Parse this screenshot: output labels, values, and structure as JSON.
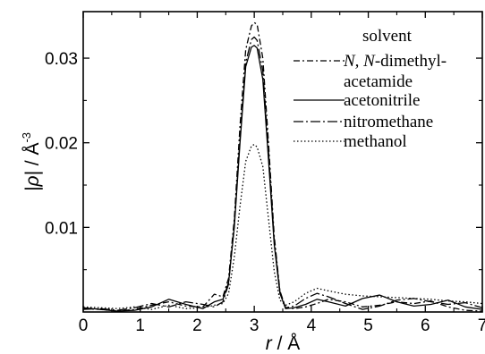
{
  "chart_data": {
    "type": "line",
    "xlabel_var": "r",
    "xlabel_unit": " / Å",
    "ylabel_var": "|ρ|",
    "ylabel_unit": " / Å",
    "ylabel_exp": "-3",
    "xlim": [
      0,
      7
    ],
    "ylim": [
      0,
      0.0355
    ],
    "xticks": [
      0,
      1,
      2,
      3,
      4,
      5,
      6,
      7
    ],
    "xtick_labels": [
      "0",
      "1",
      "2",
      "3",
      "4",
      "5",
      "6",
      "7"
    ],
    "yticks": [
      0.01,
      0.02,
      0.03
    ],
    "ytick_labels": [
      "0.01",
      "0.02",
      "0.03"
    ],
    "grid": false,
    "legend": {
      "title": "solvent",
      "placement": "top-right",
      "entries": [
        {
          "line1_italic": "N, N",
          "line1_rest": "-dimethyl-",
          "line2": "acetamide"
        },
        {
          "line1_italic": "",
          "line1_rest": "acetonitrile",
          "line2": ""
        },
        {
          "line1_italic": "",
          "line1_rest": "nitromethane",
          "line2": ""
        },
        {
          "line1_italic": "",
          "line1_rest": "methanol",
          "line2": ""
        }
      ]
    },
    "series": [
      {
        "style": "dash-dot",
        "peak": 0.0342,
        "x": [
          0,
          0.3,
          0.6,
          0.9,
          1.2,
          1.5,
          1.8,
          2.1,
          2.3,
          2.45,
          2.55,
          2.65,
          2.75,
          2.85,
          2.95,
          3.0,
          3.05,
          3.15,
          3.25,
          3.35,
          3.45,
          3.55,
          3.7,
          3.9,
          4.1,
          4.3,
          4.6,
          4.9,
          5.2,
          5.5,
          5.8,
          6.1,
          6.4,
          6.7,
          7.0
        ],
        "y": [
          0.0004,
          0.0003,
          0.0001,
          0.0003,
          0.0008,
          0.0012,
          0.0007,
          0.0006,
          0.0021,
          0.0018,
          0.004,
          0.011,
          0.022,
          0.031,
          0.0338,
          0.0342,
          0.034,
          0.03,
          0.02,
          0.009,
          0.0025,
          0.0005,
          0.0004,
          0.0006,
          0.001,
          0.0015,
          0.0012,
          0.0006,
          0.0008,
          0.0012,
          0.001,
          0.0013,
          0.0006,
          0.0002,
          0.0001
        ]
      },
      {
        "style": "solid",
        "peak": 0.0315,
        "x": [
          0,
          0.3,
          0.6,
          0.9,
          1.2,
          1.5,
          1.8,
          2.1,
          2.3,
          2.45,
          2.55,
          2.65,
          2.75,
          2.85,
          2.95,
          3.0,
          3.05,
          3.15,
          3.25,
          3.35,
          3.45,
          3.55,
          3.7,
          3.9,
          4.1,
          4.3,
          4.6,
          4.9,
          5.2,
          5.5,
          5.8,
          6.1,
          6.4,
          6.7,
          7.0
        ],
        "y": [
          0.0005,
          0.0003,
          0.0001,
          0.0002,
          0.0006,
          0.0015,
          0.0009,
          0.0004,
          0.0012,
          0.0015,
          0.0035,
          0.01,
          0.02,
          0.029,
          0.0313,
          0.0315,
          0.0312,
          0.0275,
          0.018,
          0.008,
          0.0022,
          0.0004,
          0.0005,
          0.0009,
          0.0015,
          0.0012,
          0.0007,
          0.0016,
          0.002,
          0.0012,
          0.0007,
          0.0009,
          0.0014,
          0.0006,
          0.0003
        ]
      },
      {
        "style": "long-dash-dot",
        "peak": 0.0325,
        "x": [
          0,
          0.3,
          0.6,
          0.9,
          1.2,
          1.5,
          1.8,
          2.1,
          2.3,
          2.45,
          2.55,
          2.65,
          2.75,
          2.85,
          2.95,
          3.0,
          3.05,
          3.15,
          3.25,
          3.35,
          3.45,
          3.55,
          3.7,
          3.9,
          4.1,
          4.3,
          4.6,
          4.9,
          5.2,
          5.5,
          5.8,
          6.1,
          6.4,
          6.7,
          7.0
        ],
        "y": [
          0.0003,
          0.0004,
          0.0002,
          0.0005,
          0.001,
          0.0006,
          0.0012,
          0.0009,
          0.0006,
          0.0012,
          0.0033,
          0.0105,
          0.0205,
          0.0295,
          0.0322,
          0.0325,
          0.0321,
          0.0285,
          0.019,
          0.0085,
          0.0024,
          0.0005,
          0.0007,
          0.0016,
          0.0022,
          0.0018,
          0.001,
          0.0003,
          0.0007,
          0.0014,
          0.0016,
          0.0012,
          0.0009,
          0.0011,
          0.0005
        ]
      },
      {
        "style": "dotted",
        "peak": 0.0198,
        "x": [
          0,
          0.3,
          0.6,
          0.9,
          1.2,
          1.5,
          1.8,
          2.1,
          2.3,
          2.45,
          2.55,
          2.65,
          2.75,
          2.85,
          2.95,
          3.0,
          3.05,
          3.15,
          3.25,
          3.35,
          3.45,
          3.55,
          3.7,
          3.9,
          4.1,
          4.3,
          4.6,
          4.9,
          5.2,
          5.5,
          5.8,
          6.1,
          6.4,
          6.7,
          7.0
        ],
        "y": [
          0.0006,
          0.0005,
          0.0004,
          0.0006,
          0.0003,
          0.0008,
          0.0004,
          0.0005,
          0.0008,
          0.001,
          0.0022,
          0.0065,
          0.0125,
          0.0178,
          0.0196,
          0.0198,
          0.0195,
          0.0172,
          0.011,
          0.0048,
          0.0014,
          0.0008,
          0.0012,
          0.0022,
          0.0028,
          0.0025,
          0.0021,
          0.0019,
          0.0018,
          0.0017,
          0.0016,
          0.0015,
          0.0013,
          0.0012,
          0.001
        ]
      }
    ]
  }
}
